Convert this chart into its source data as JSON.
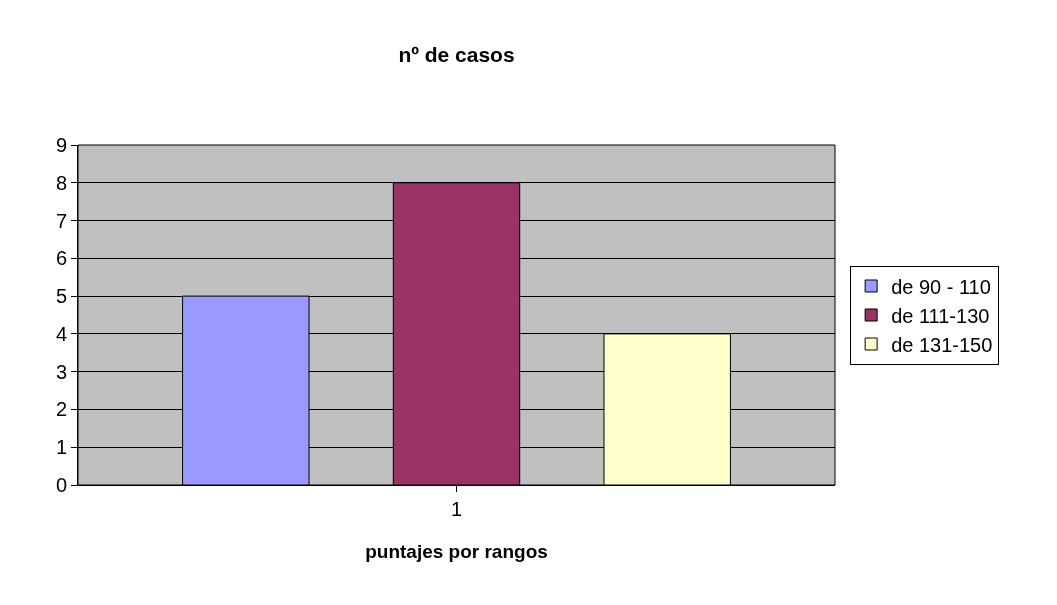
{
  "chart_data": {
    "type": "bar",
    "title": "nº de casos",
    "xlabel": "puntajes por rangos",
    "categories": [
      "1"
    ],
    "series": [
      {
        "name": "de 90 - 110",
        "color": "#9999ff",
        "values": [
          5
        ]
      },
      {
        "name": "de 111-130",
        "color": "#993366",
        "values": [
          8
        ]
      },
      {
        "name": "de 131-150",
        "color": "#ffffcc",
        "values": [
          4
        ]
      }
    ],
    "ylim": [
      0,
      9
    ],
    "yticks": [
      0,
      1,
      2,
      3,
      4,
      5,
      6,
      7,
      8,
      9
    ],
    "grid": "y",
    "legend": "right"
  }
}
